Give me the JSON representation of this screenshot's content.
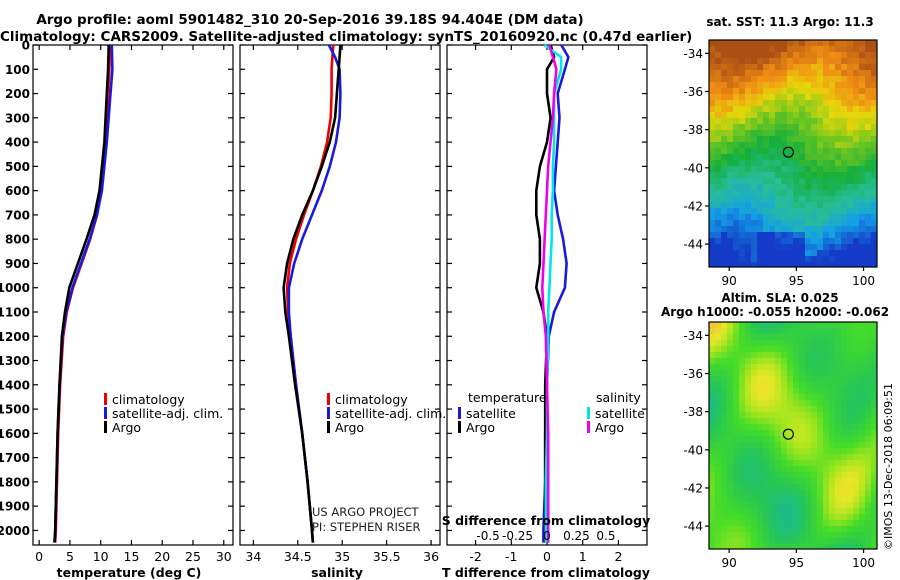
{
  "header": {
    "title_line1": "Argo profile: aoml 5901482_310 20-Sep-2016 39.18S 94.404E (DM data)",
    "title_line2": "Climatology: CARS2009. Satellite-adjusted climatology: synTS_20160920.nc (0.47d earlier)"
  },
  "footer": {
    "imos_stamp": "©IMOS 13-Dec-2018 06:09:51"
  },
  "colors": {
    "climatology": "#ee0000",
    "satellite": "#1a1adc",
    "argo": "#000000",
    "satellite_sal": "#00e5ee",
    "argo_sal": "#ee00ee"
  },
  "chart_data": [
    {
      "id": "temperature",
      "type": "line",
      "xlabel": "temperature (deg C)",
      "ylabel": "",
      "xlim": [
        -1,
        31.5
      ],
      "ylim": [
        2060,
        0
      ],
      "xticks": [
        0,
        5,
        10,
        15,
        20,
        25,
        30
      ],
      "yticks": [
        0,
        100,
        200,
        300,
        400,
        500,
        600,
        700,
        800,
        900,
        1000,
        1100,
        1200,
        1300,
        1400,
        1500,
        1600,
        1700,
        1800,
        1900,
        2000
      ],
      "legend": [
        "climatology",
        "satellite-adj. clim.",
        "Argo"
      ],
      "depth": [
        0,
        100,
        200,
        400,
        600,
        700,
        800,
        900,
        1000,
        1100,
        1200,
        1400,
        1600,
        1800,
        2000,
        2050
      ],
      "series": [
        {
          "name": "climatology",
          "color": "#ee0000",
          "values": [
            11.5,
            11.4,
            11.2,
            10.8,
            10.1,
            9.4,
            8.3,
            6.9,
            5.5,
            4.5,
            3.9,
            3.4,
            3.1,
            2.9,
            2.7,
            2.6
          ]
        },
        {
          "name": "satellite-adj. clim.",
          "color": "#1a1adc",
          "values": [
            11.8,
            11.9,
            11.6,
            11.0,
            10.2,
            9.4,
            8.2,
            6.8,
            5.4,
            4.4,
            3.8,
            3.3,
            3.0,
            2.8,
            2.6,
            2.5
          ]
        },
        {
          "name": "Argo",
          "color": "#000000",
          "values": [
            11.3,
            11.2,
            11.0,
            10.6,
            9.8,
            9.0,
            7.7,
            6.3,
            4.9,
            4.2,
            3.7,
            3.3,
            3.0,
            2.8,
            2.6,
            2.5
          ]
        }
      ]
    },
    {
      "id": "salinity",
      "type": "line",
      "xlabel": "salinity",
      "xlim": [
        33.85,
        36.1
      ],
      "ylim": [
        2060,
        0
      ],
      "xticks": [
        34,
        34.5,
        35,
        35.5,
        36
      ],
      "legend": [
        "climatology",
        "satellite-adj. clim.",
        "Argo"
      ],
      "annotation": [
        "US ARGO PROJECT",
        "PI: STEPHEN RISER"
      ],
      "depth": [
        0,
        50,
        100,
        200,
        300,
        400,
        500,
        600,
        700,
        800,
        900,
        1000,
        1100,
        1200,
        1400,
        1600,
        1800,
        2000,
        2050
      ],
      "series": [
        {
          "name": "climatology",
          "color": "#ee0000",
          "values": [
            34.9,
            34.89,
            34.88,
            34.88,
            34.87,
            34.83,
            34.76,
            34.67,
            34.57,
            34.48,
            34.41,
            34.38,
            34.39,
            34.42,
            34.48,
            34.55,
            34.61,
            34.66,
            34.67
          ]
        },
        {
          "name": "satellite-adj. clim.",
          "color": "#1a1adc",
          "values": [
            34.85,
            34.92,
            34.97,
            34.98,
            34.97,
            34.93,
            34.86,
            34.77,
            34.66,
            34.55,
            34.46,
            34.4,
            34.4,
            34.42,
            34.48,
            34.55,
            34.61,
            34.66,
            34.67
          ]
        },
        {
          "name": "Argo",
          "color": "#000000",
          "values": [
            34.98,
            34.97,
            34.96,
            34.94,
            34.92,
            34.86,
            34.77,
            34.67,
            34.55,
            34.45,
            34.38,
            34.34,
            34.36,
            34.4,
            34.47,
            34.55,
            34.61,
            34.66,
            34.67
          ]
        }
      ]
    },
    {
      "id": "difference",
      "type": "line",
      "xlabel": "T difference from climatology",
      "xlabel_top": "S difference from climatology",
      "xlim": [
        -2.8,
        2.8
      ],
      "ylim": [
        2060,
        0
      ],
      "xticks": [
        -2,
        -1,
        0,
        1,
        2
      ],
      "xticks_sal": [
        -0.5,
        -0.25,
        0,
        0.25,
        0.5
      ],
      "xticks_sal_labels": [
        "-0.5",
        "-0.25",
        "0",
        "0.25",
        "0.5"
      ],
      "legend_temperature_title": "temperature",
      "legend_salinity_title": "salinity",
      "legend_temperature": [
        "satellite",
        "Argo"
      ],
      "legend_salinity": [
        "satellite",
        "Argo"
      ],
      "depth": [
        0,
        50,
        100,
        200,
        300,
        400,
        500,
        600,
        700,
        800,
        900,
        1000,
        1100,
        1200,
        1400,
        1600,
        1800,
        2000,
        2050
      ],
      "series": [
        {
          "name": "temperature satellite",
          "color": "#1a1adc",
          "values": [
            0.4,
            0.6,
            0.5,
            0.3,
            0.35,
            0.3,
            0.25,
            0.2,
            0.3,
            0.45,
            0.55,
            0.5,
            0.2,
            0.05,
            0.0,
            -0.05,
            -0.05,
            -0.1,
            -0.1
          ]
        },
        {
          "name": "temperature Argo",
          "color": "#000000",
          "values": [
            0.1,
            0.2,
            0.0,
            0.0,
            0.1,
            0.0,
            -0.2,
            -0.3,
            -0.3,
            -0.2,
            -0.2,
            -0.3,
            -0.1,
            0.0,
            -0.05,
            -0.05,
            -0.05,
            -0.05,
            -0.05
          ]
        },
        {
          "name": "salinity satellite",
          "color": "#00e5ee",
          "values": [
            -0.02,
            0.12,
            0.12,
            0.06,
            0.06,
            0.06,
            0.05,
            0.05,
            0.04,
            0.04,
            0.03,
            0.02,
            0.01,
            0.01,
            0.0,
            0.0,
            -0.01,
            -0.01,
            -0.01
          ]
        },
        {
          "name": "salinity Argo",
          "color": "#ee00ee",
          "values": [
            0.02,
            0.05,
            0.08,
            0.06,
            0.05,
            0.03,
            0.01,
            0.0,
            -0.01,
            -0.02,
            -0.03,
            -0.04,
            -0.03,
            -0.01,
            0.0,
            0.01,
            0.01,
            0.01,
            0.01
          ]
        }
      ]
    },
    {
      "id": "sst-map",
      "type": "heatmap",
      "title": "sat. SST: 11.3 Argo: 11.3",
      "xlim": [
        88.5,
        101
      ],
      "ylim": [
        -45.2,
        -33.3
      ],
      "xticks": [
        90,
        95,
        100
      ],
      "yticks": [
        -34,
        -36,
        -38,
        -40,
        -42,
        -44
      ],
      "marker": {
        "lon": 94.404,
        "lat": -39.18
      }
    },
    {
      "id": "sla-map",
      "type": "heatmap",
      "title_line1": "Altim. SLA: 0.025",
      "title_line2": "Argo h1000: -0.055 h2000: -0.062",
      "xlim": [
        88.5,
        101
      ],
      "ylim": [
        -45.2,
        -33.3
      ],
      "xticks": [
        90,
        95,
        100
      ],
      "yticks": [
        -34,
        -36,
        -38,
        -40,
        -42,
        -44
      ],
      "marker": {
        "lon": 94.404,
        "lat": -39.18
      }
    }
  ]
}
